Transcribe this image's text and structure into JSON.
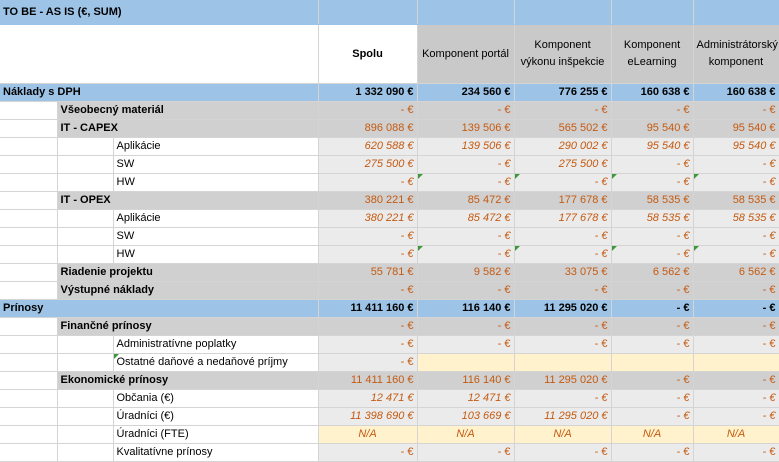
{
  "title": "TO BE - AS IS (€, SUM)",
  "columns": [
    "Spolu",
    "Komponent portál",
    "Komponent výkonu inšpekcie",
    "Komponent eLearning",
    "Administrátorský komponent"
  ],
  "rows": [
    {
      "level": "section",
      "label": "Náklady s DPH",
      "values": [
        "1 332 090 €",
        "234 560 €",
        "776 255 €",
        "160 638 €",
        "160 638 €"
      ]
    },
    {
      "level": "l1",
      "label": "Všeobecný materiál",
      "values": [
        "- €",
        "- €",
        "- €",
        "- €",
        "- €"
      ]
    },
    {
      "level": "l1",
      "label": "IT - CAPEX",
      "values": [
        "896 088 €",
        "139 506 €",
        "565 502 €",
        "95 540 €",
        "95 540 €"
      ]
    },
    {
      "level": "l2",
      "label": "Aplikácie",
      "italic": true,
      "values": [
        "620 588 €",
        "139 506 €",
        "290 002 €",
        "95 540 €",
        "95 540 €"
      ]
    },
    {
      "level": "l2",
      "label": "SW",
      "italic": true,
      "values": [
        "275 500 €",
        "- €",
        "275 500 €",
        "- €",
        "- €"
      ]
    },
    {
      "level": "l2",
      "label": "HW",
      "italic": true,
      "flags": true,
      "values": [
        "- €",
        "- €",
        "- €",
        "- €",
        "- €"
      ]
    },
    {
      "level": "l1",
      "label": "IT - OPEX",
      "values": [
        "380 221 €",
        "85 472 €",
        "177 678 €",
        "58 535 €",
        "58 535 €"
      ]
    },
    {
      "level": "l2",
      "label": "Aplikácie",
      "italic": true,
      "values": [
        "380 221 €",
        "85 472 €",
        "177 678 €",
        "58 535 €",
        "58 535 €"
      ]
    },
    {
      "level": "l2",
      "label": "SW",
      "italic": true,
      "values": [
        "- €",
        "- €",
        "- €",
        "- €",
        "- €"
      ]
    },
    {
      "level": "l2",
      "label": "HW",
      "italic": true,
      "flags": true,
      "values": [
        "- €",
        "- €",
        "- €",
        "- €",
        "- €"
      ]
    },
    {
      "level": "l1",
      "label": "Riadenie projektu",
      "values": [
        "55 781 €",
        "9 582 €",
        "33 075 €",
        "6 562 €",
        "6 562 €"
      ]
    },
    {
      "level": "l1",
      "label": "Výstupné náklady",
      "values": [
        "- €",
        "- €",
        "- €",
        "- €",
        "- €"
      ]
    },
    {
      "level": "section",
      "label": "Prínosy",
      "values": [
        "11 411 160 €",
        "116 140 €",
        "11 295 020 €",
        "- €",
        "- €"
      ]
    },
    {
      "level": "l1",
      "label": "Finančné prínosy",
      "values": [
        "- €",
        "- €",
        "- €",
        "- €",
        "- €"
      ]
    },
    {
      "level": "l2",
      "label": "Administratívne poplatky",
      "values": [
        "- €",
        "- €",
        "- €",
        "- €",
        "- €"
      ]
    },
    {
      "level": "l2",
      "label": "Ostatné daňové a nedaňové príjmy",
      "flagLabel": true,
      "yellowRest": true,
      "values": [
        "- €",
        "",
        "",
        "",
        ""
      ]
    },
    {
      "level": "l1",
      "label": "Ekonomické prínosy",
      "values": [
        "11 411 160 €",
        "116 140 €",
        "11 295 020 €",
        "- €",
        "- €"
      ]
    },
    {
      "level": "l2",
      "label": "Občania (€)",
      "italic": true,
      "values": [
        "12 471 €",
        "12 471 €",
        "- €",
        "- €",
        "- €"
      ]
    },
    {
      "level": "l2",
      "label": "Úradníci (€)",
      "italic": true,
      "values": [
        "11 398 690 €",
        "103 669 €",
        "11 295 020 €",
        "- €",
        "- €"
      ]
    },
    {
      "level": "l2",
      "label": "Úradníci (FTE)",
      "italic": true,
      "yellowAll": true,
      "values": [
        "N/A",
        "N/A",
        "N/A",
        "N/A",
        "N/A"
      ]
    },
    {
      "level": "l2",
      "label": "Kvalitatívne prínosy",
      "values": [
        "- €",
        "- €",
        "- €",
        "- €",
        "- €"
      ]
    }
  ]
}
